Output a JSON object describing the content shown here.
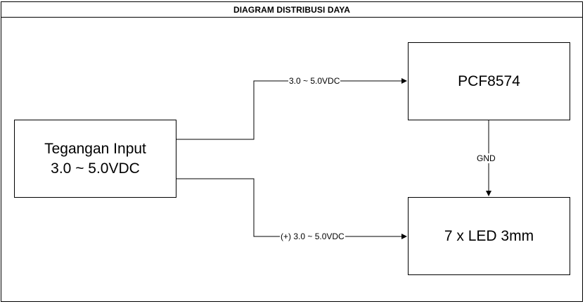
{
  "diagram": {
    "title": "DIAGRAM DISTRIBUSI DAYA",
    "nodes": {
      "input": {
        "line1": "Tegangan Input",
        "line2": "3.0 ~ 5.0VDC"
      },
      "pcf": {
        "label": "PCF8574"
      },
      "led": {
        "label": "7 x LED 3mm"
      }
    },
    "edges": {
      "input_to_pcf": "3.0 ~ 5.0VDC",
      "input_to_led": "(+) 3.0 ~ 5.0VDC",
      "pcf_to_led": "GND"
    }
  }
}
